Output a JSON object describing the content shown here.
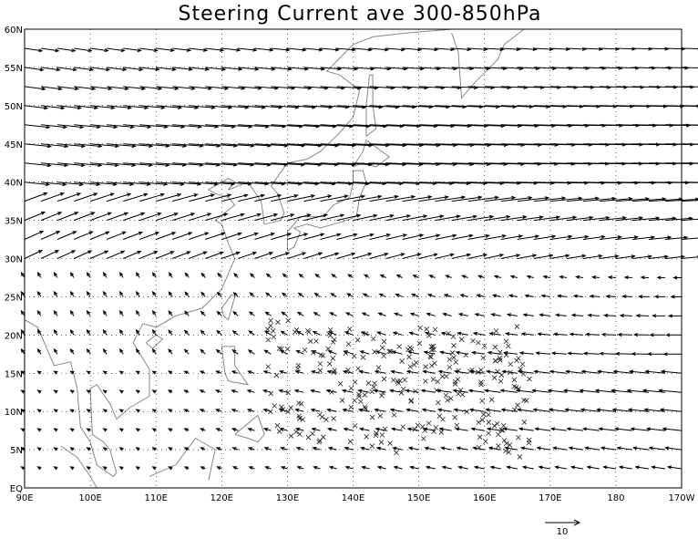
{
  "map": {
    "title": "Steering Current ave 300-850hPa",
    "x_labels": [
      "90E",
      "100E",
      "110E",
      "120E",
      "130E",
      "140E",
      "150E",
      "160E",
      "170E",
      "180",
      "170W"
    ],
    "y_labels": [
      "EQ",
      "5N",
      "10N",
      "15N",
      "20N",
      "25N",
      "30N",
      "35N",
      "40N",
      "45N",
      "50N",
      "55N",
      "60N"
    ],
    "reference_vector": "10"
  }
}
